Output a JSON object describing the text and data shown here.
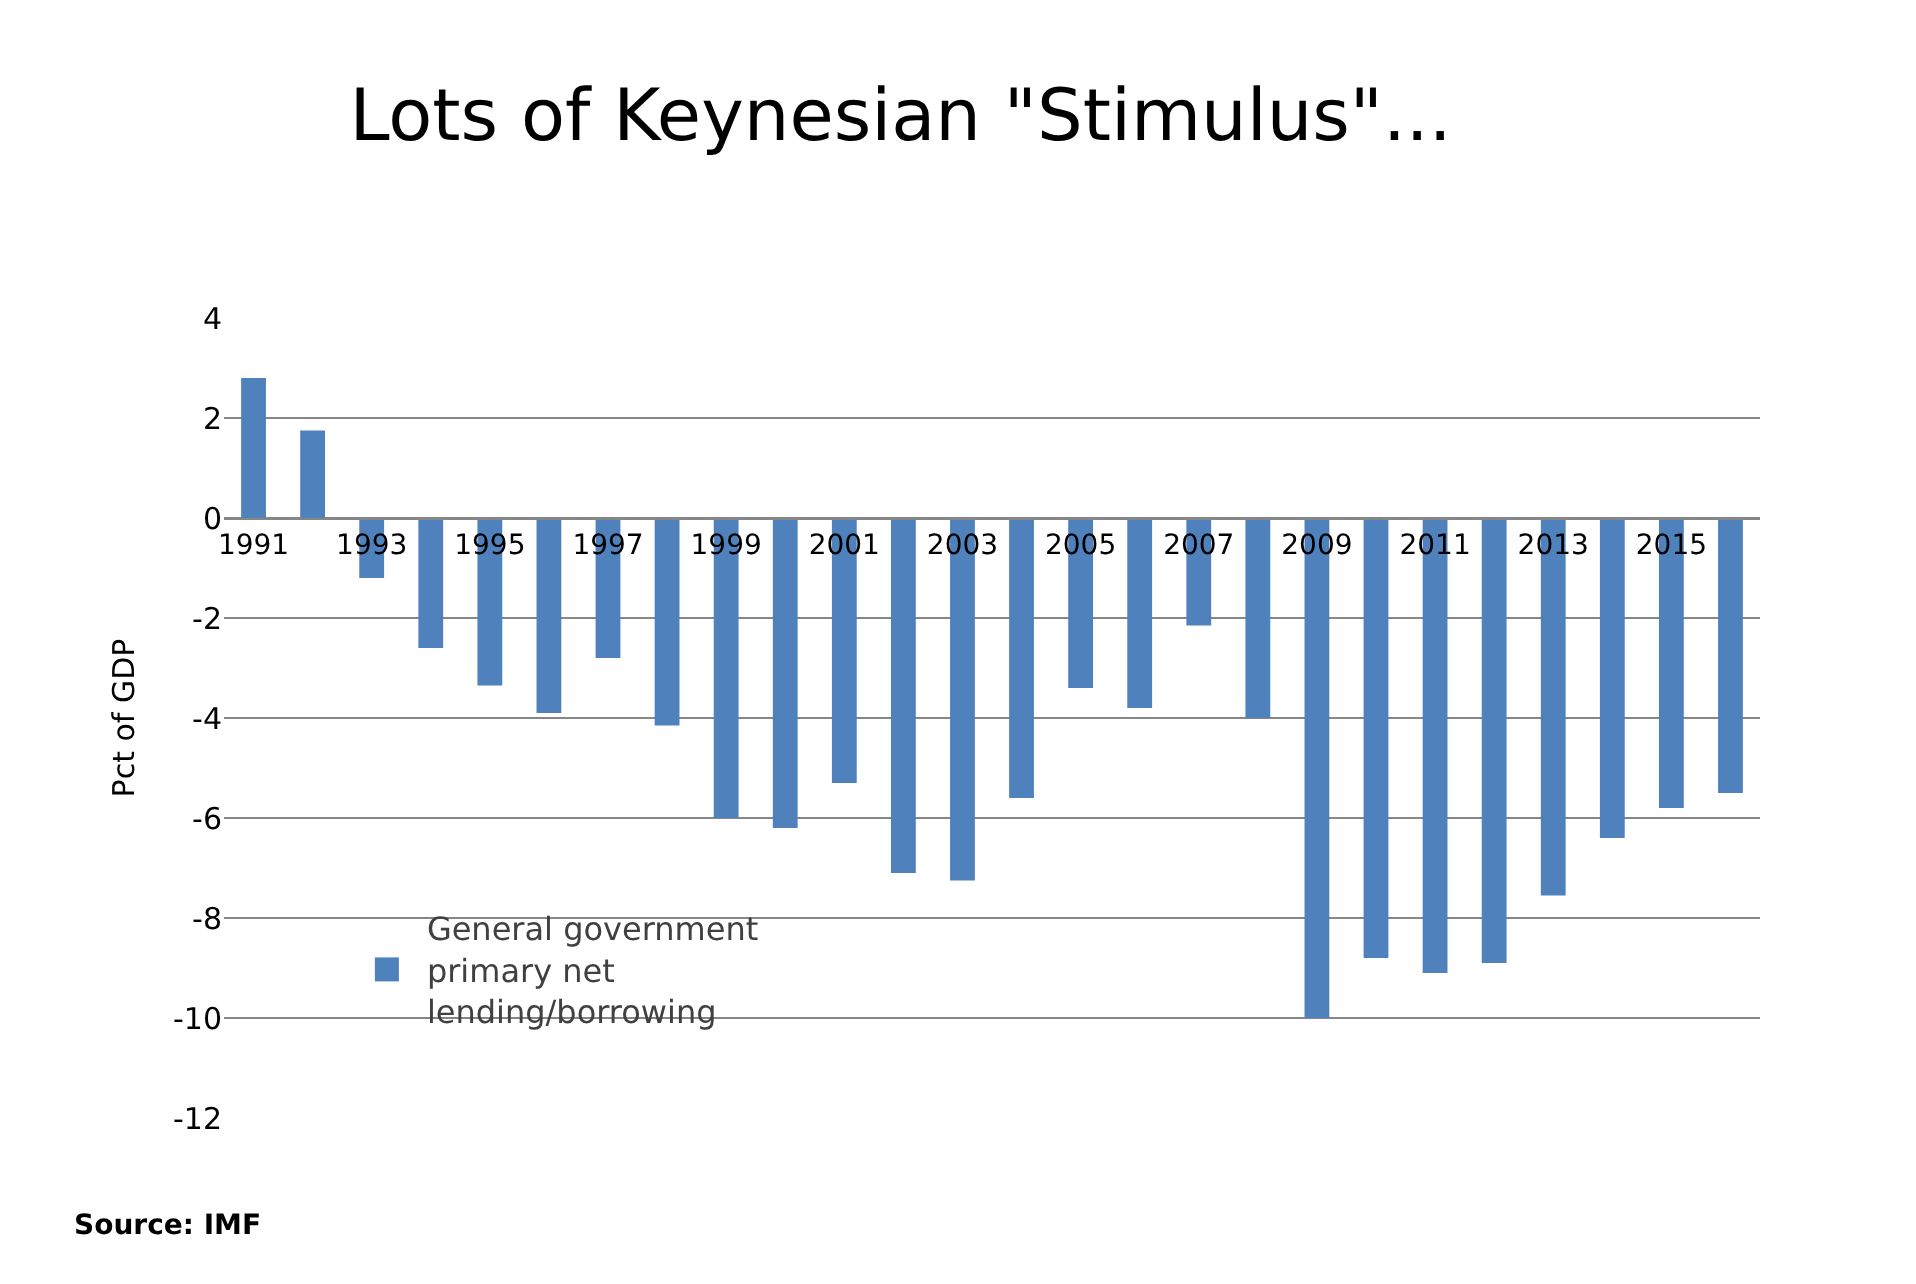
{
  "chart_data": {
    "type": "bar",
    "title": "Lots of Keynesian \"Stimulus\"...",
    "ylabel": "Pct of GDP",
    "categories": [
      "1991",
      null,
      "1993",
      null,
      "1995",
      null,
      "1997",
      null,
      "1999",
      null,
      "2001",
      null,
      "2003",
      null,
      "2005",
      null,
      "2007",
      null,
      "2009",
      null,
      "2011",
      null,
      "2013",
      null,
      "2015",
      null
    ],
    "series": [
      {
        "name": "General government primary net lending/borrowing",
        "color": "#4f81bd",
        "values": [
          2.8,
          1.75,
          -1.2,
          -2.6,
          -3.35,
          -3.9,
          -2.8,
          -4.15,
          -6.0,
          -6.2,
          -5.3,
          -7.1,
          -7.25,
          -5.6,
          -3.4,
          -3.8,
          -2.15,
          -4.0,
          -10.0,
          -8.8,
          -9.1,
          -8.9,
          -7.55,
          -6.4,
          -5.8,
          -5.5
        ]
      }
    ],
    "ylim": [
      -12,
      4
    ],
    "yticks": [
      -12,
      -10,
      -8,
      -6,
      -4,
      -2,
      0,
      2,
      4
    ],
    "grid": "y",
    "legend": "bottom left",
    "annotations": [
      "Source: IMF"
    ]
  }
}
